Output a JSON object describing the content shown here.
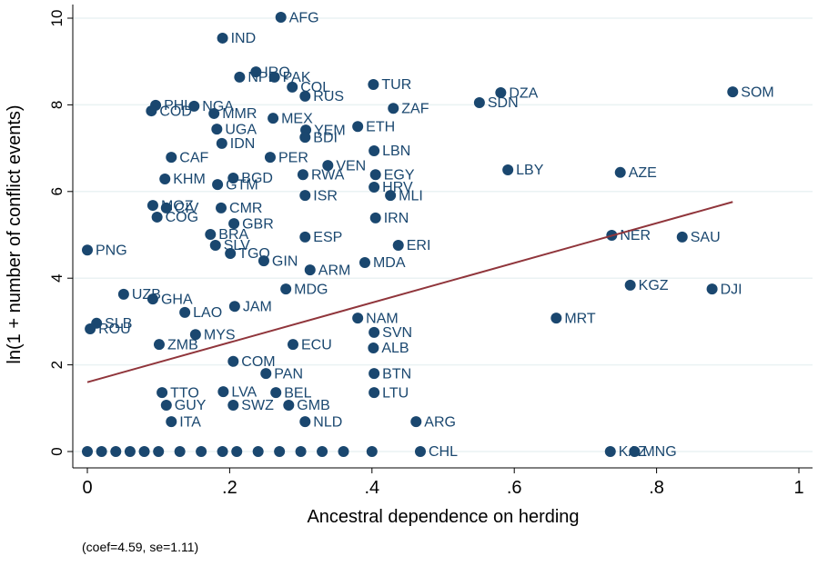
{
  "chart_data": {
    "type": "scatter",
    "xlabel": "Ancestral dependence on herding",
    "ylabel": "ln(1 + number of conflict events)",
    "note": "(coef=4.59, se=1.11)",
    "xlim": [
      0,
      1
    ],
    "ylim": [
      0,
      10
    ],
    "xticks": [
      0,
      {
        "value": 0.2,
        "label": ".2"
      },
      {
        "value": 0.4,
        "label": ".4"
      },
      {
        "value": 0.6,
        "label": ".6"
      },
      {
        "value": 0.8,
        "label": ".8"
      },
      1
    ],
    "yticks": [
      0,
      2,
      4,
      6,
      8,
      10
    ],
    "grid": true,
    "color": "#1a476f",
    "fit_color": "#90353b",
    "fit": {
      "x": [
        0,
        0.907
      ],
      "y": [
        1.6,
        5.76
      ]
    },
    "series": [
      {
        "name": null,
        "color": "#1a476f",
        "labels": [
          "AFG",
          "IND",
          "IRQ",
          "NPL",
          "PAK",
          "COL",
          "TUR",
          "RUS",
          "DZA",
          "SOM",
          "SDN",
          "ZAF",
          "PHL",
          "COD",
          "NGA",
          "MMR",
          "MEX",
          "UGA",
          "YEM",
          "ETH",
          "IDN",
          "BDI",
          "LBN",
          "CAF",
          "PER",
          "VEN",
          "RWA",
          "EGY",
          "LBY",
          "AZE",
          "KHM",
          "BGD",
          "GTM",
          "HRV",
          "MLI",
          "ISR",
          "IRN",
          "MOZ",
          "CIV",
          "CMR",
          "COG",
          "GBR",
          "BRA",
          "ESP",
          "NER",
          "SAU",
          "SLV",
          "ERI",
          "TGO",
          "PNG",
          "GIN",
          "MDA",
          "ARM",
          "KGZ",
          "DJI",
          "UZB",
          "GHA",
          "MDG",
          "LAO",
          "JAM",
          "NAM",
          "MRT",
          "SLB",
          "ROU",
          "SVN",
          "MYS",
          "ZMB",
          "ECU",
          "ALB",
          "COM",
          "PAN",
          "BTN",
          "LVA",
          "BEL",
          "LTU",
          "TTO",
          "GUY",
          "SWZ",
          "GMB",
          "ITA",
          "NLD",
          "ARG",
          "CHL",
          "KAZ",
          "MNG",
          null,
          null,
          null,
          null,
          null,
          null,
          null,
          null,
          null,
          null,
          null,
          null,
          null,
          null,
          null,
          null
        ],
        "x": [
          0.272,
          0.19,
          0.237,
          0.214,
          0.263,
          0.288,
          0.402,
          0.306,
          0.581,
          0.907,
          0.551,
          0.43,
          0.096,
          0.09,
          0.15,
          0.178,
          0.261,
          0.182,
          0.307,
          0.38,
          0.189,
          0.306,
          0.403,
          0.118,
          0.257,
          0.338,
          0.303,
          0.405,
          0.591,
          0.749,
          0.109,
          0.205,
          0.183,
          0.403,
          0.426,
          0.306,
          0.405,
          0.092,
          0.111,
          0.188,
          0.098,
          0.206,
          0.173,
          0.306,
          0.737,
          0.836,
          0.18,
          0.437,
          0.201,
          0.0,
          0.248,
          0.39,
          0.313,
          0.763,
          0.878,
          0.051,
          0.092,
          0.279,
          0.137,
          0.207,
          0.38,
          0.659,
          0.013,
          0.004,
          0.403,
          0.152,
          0.101,
          0.289,
          0.402,
          0.205,
          0.251,
          0.403,
          0.191,
          0.265,
          0.403,
          0.105,
          0.111,
          0.205,
          0.283,
          0.118,
          0.306,
          0.462,
          0.468,
          0.735,
          0.769,
          0.0,
          0.02,
          0.04,
          0.06,
          0.08,
          0.1,
          0.13,
          0.16,
          0.19,
          0.21,
          0.24,
          0.27,
          0.3,
          0.33,
          0.36,
          0.4
        ],
        "values": [
          10.02,
          9.54,
          8.76,
          8.64,
          8.64,
          8.41,
          8.47,
          8.2,
          8.28,
          8.3,
          8.05,
          7.92,
          7.99,
          7.86,
          7.97,
          7.8,
          7.69,
          7.44,
          7.42,
          7.5,
          7.11,
          7.25,
          6.94,
          6.79,
          6.79,
          6.6,
          6.39,
          6.39,
          6.5,
          6.44,
          6.29,
          6.31,
          6.16,
          6.1,
          5.91,
          5.91,
          5.39,
          5.68,
          5.62,
          5.62,
          5.41,
          5.26,
          5.01,
          4.95,
          4.99,
          4.95,
          4.76,
          4.76,
          4.57,
          4.65,
          4.4,
          4.36,
          4.19,
          3.84,
          3.75,
          3.63,
          3.52,
          3.75,
          3.21,
          3.35,
          3.08,
          3.08,
          2.96,
          2.83,
          2.75,
          2.7,
          2.47,
          2.47,
          2.39,
          2.08,
          1.8,
          1.8,
          1.38,
          1.36,
          1.36,
          1.36,
          1.07,
          1.07,
          1.07,
          0.69,
          0.69,
          0.69,
          0,
          0,
          0,
          0,
          0,
          0,
          0,
          0,
          0,
          0,
          0,
          0,
          0,
          0,
          0,
          0,
          0,
          0,
          0
        ]
      }
    ]
  }
}
